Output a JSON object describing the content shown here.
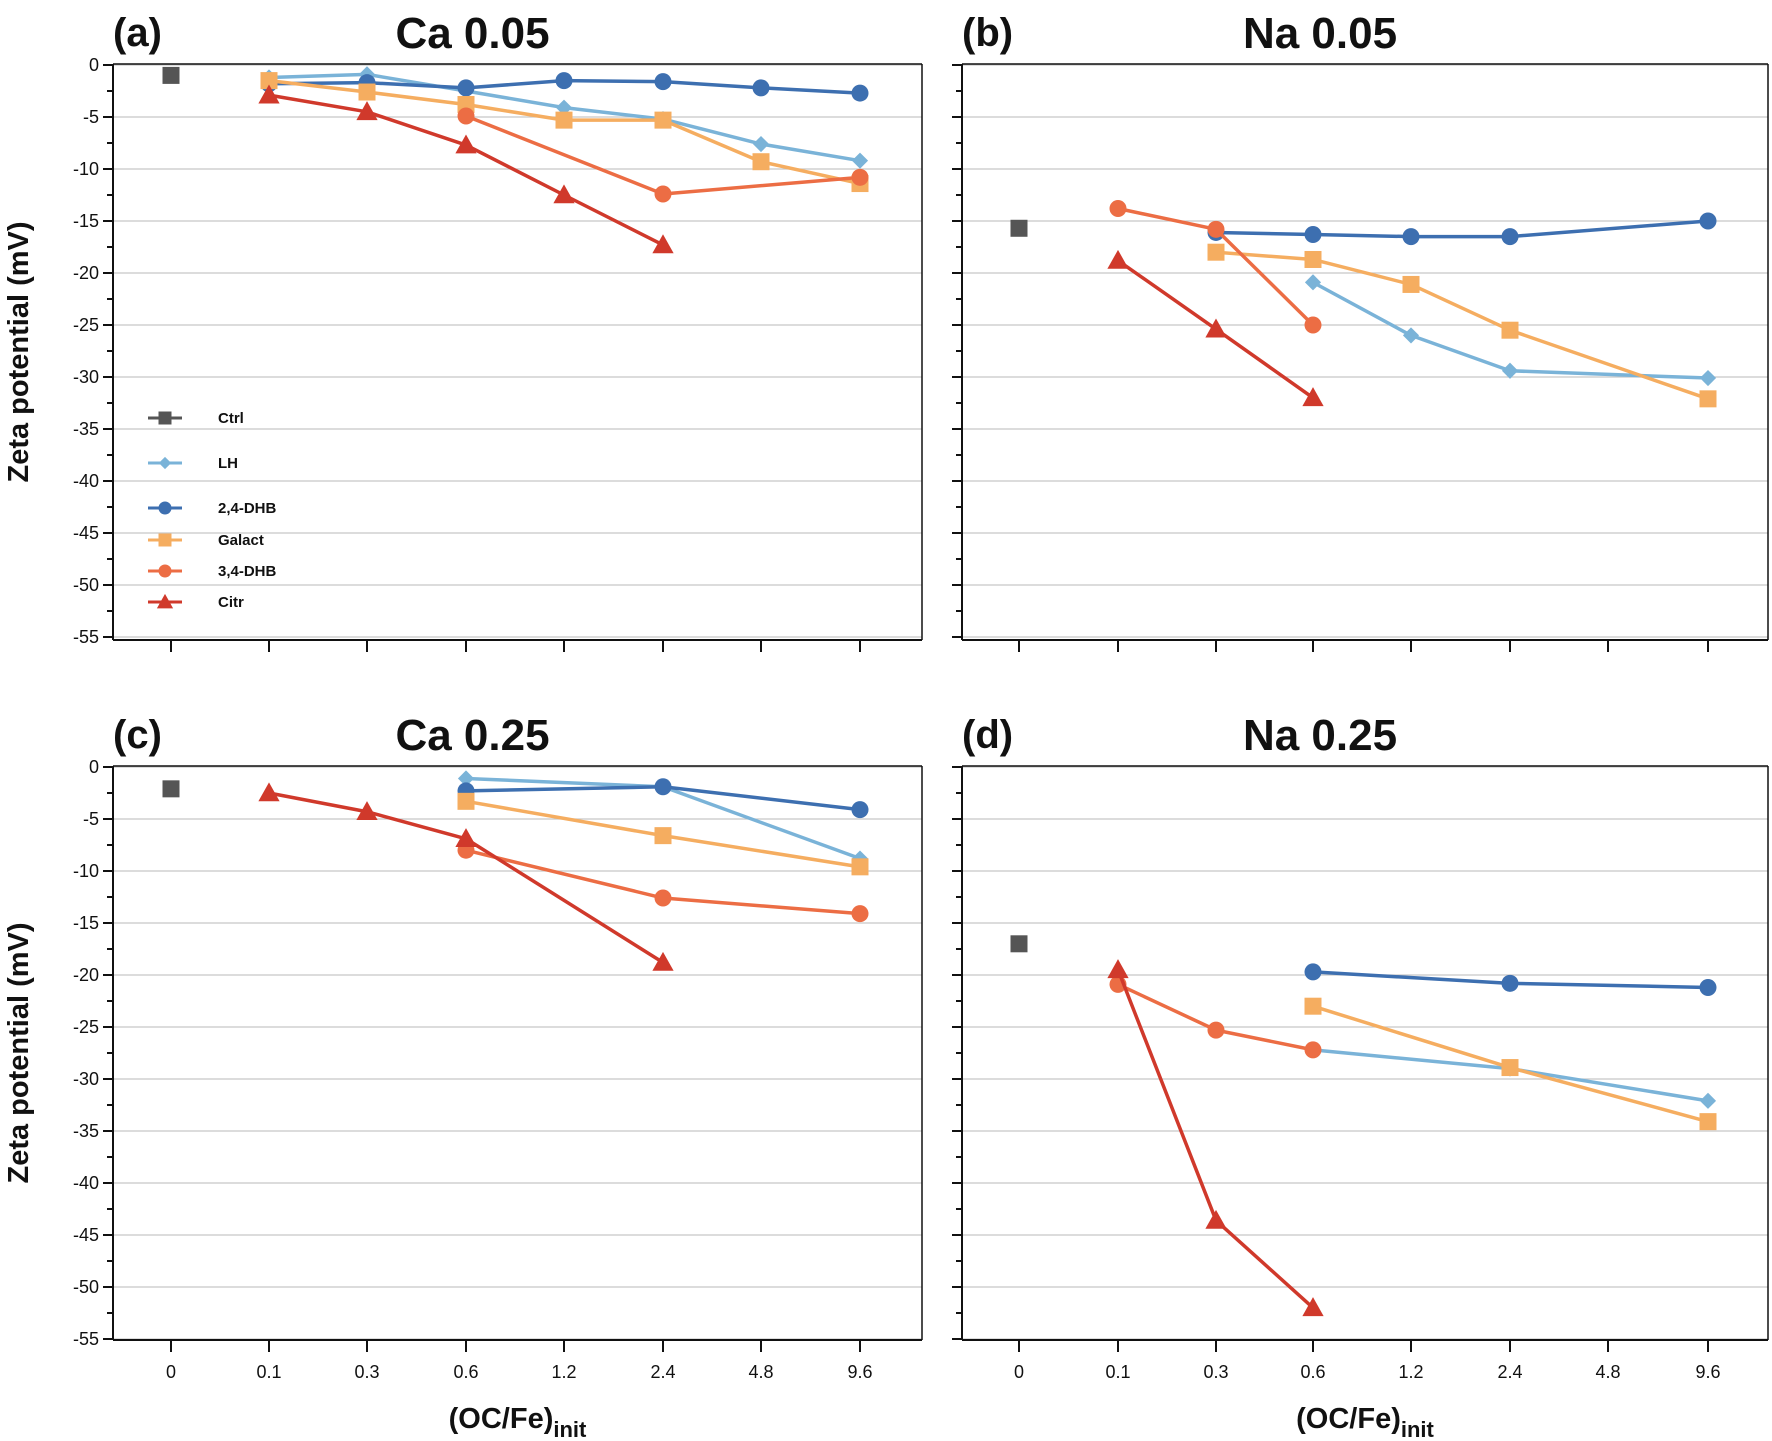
{
  "chart_data": [
    {
      "type": "line",
      "panel_letter": "(a)",
      "title": "Ca 0.05",
      "ylabel": "Zeta potential (mV)",
      "xlabel": "",
      "categories": [
        "0",
        "0.1",
        "0.3",
        "0.6",
        "1.2",
        "2.4",
        "4.8",
        "9.6"
      ],
      "ylim": [
        -55,
        0
      ],
      "yticks": [
        "0",
        "-5",
        "-10",
        "-15",
        "-20",
        "-25",
        "-30",
        "-35",
        "-40",
        "-45",
        "-50",
        "-55"
      ],
      "grid": true,
      "legend_position": "left",
      "series": [
        {
          "name": "Ctrl",
          "marker": "square",
          "color": "#555555",
          "values": [
            -1.0,
            null,
            null,
            null,
            null,
            null,
            null,
            null
          ]
        },
        {
          "name": "LH",
          "marker": "diamond",
          "color": "#7ab3d8",
          "values": [
            null,
            -1.2,
            -0.9,
            -2.5,
            -4.1,
            -5.2,
            -7.6,
            -9.2
          ]
        },
        {
          "name": "2,4-DHB",
          "marker": "circle",
          "color": "#3d6fb0",
          "values": [
            null,
            -1.8,
            -1.7,
            -2.2,
            -1.5,
            -1.6,
            -2.2,
            -2.7
          ]
        },
        {
          "name": "Galact",
          "marker": "square",
          "color": "#f5ad60",
          "values": [
            null,
            -1.5,
            -2.6,
            -3.8,
            -5.3,
            -5.3,
            -9.3,
            -11.4
          ]
        },
        {
          "name": "3,4-DHB",
          "marker": "circle",
          "color": "#ec6d44",
          "values": [
            null,
            null,
            null,
            -4.9,
            null,
            -12.4,
            null,
            -10.8
          ]
        },
        {
          "name": "Citr",
          "marker": "triangle",
          "color": "#d0392b",
          "values": [
            null,
            -2.9,
            -4.5,
            -7.7,
            -12.5,
            -17.3,
            null,
            null
          ]
        }
      ]
    },
    {
      "type": "line",
      "panel_letter": "(b)",
      "title": "Na 0.05",
      "ylabel": "",
      "xlabel": "",
      "categories": [
        "0",
        "0.1",
        "0.3",
        "0.6",
        "1.2",
        "2.4",
        "4.8",
        "9.6"
      ],
      "ylim": [
        -55,
        0
      ],
      "grid": true,
      "series": [
        {
          "name": "Ctrl",
          "marker": "square",
          "color": "#555555",
          "values": [
            -15.7,
            null,
            null,
            null,
            null,
            null,
            null,
            null
          ]
        },
        {
          "name": "LH",
          "marker": "diamond",
          "color": "#7ab3d8",
          "values": [
            null,
            null,
            null,
            -20.9,
            -26.0,
            -29.4,
            null,
            -30.1
          ]
        },
        {
          "name": "2,4-DHB",
          "marker": "circle",
          "color": "#3d6fb0",
          "values": [
            null,
            null,
            -16.1,
            -16.3,
            -16.5,
            -16.5,
            null,
            -15.0
          ]
        },
        {
          "name": "Galact",
          "marker": "square",
          "color": "#f5ad60",
          "values": [
            null,
            null,
            -18.0,
            -18.7,
            -21.1,
            -25.5,
            null,
            -32.1
          ]
        },
        {
          "name": "3,4-DHB",
          "marker": "circle",
          "color": "#ec6d44",
          "values": [
            null,
            -13.8,
            -15.8,
            -25.0,
            null,
            null,
            null,
            null
          ]
        },
        {
          "name": "Citr",
          "marker": "triangle",
          "color": "#d0392b",
          "values": [
            null,
            -18.8,
            -25.4,
            -32.0,
            null,
            null,
            null,
            null
          ]
        }
      ]
    },
    {
      "type": "line",
      "panel_letter": "(c)",
      "title": "Ca 0.25",
      "ylabel": "Zeta potential (mV)",
      "xlabel": "(OC/Fe)",
      "xlabel_sub": "init",
      "categories": [
        "0",
        "0.1",
        "0.3",
        "0.6",
        "1.2",
        "2.4",
        "4.8",
        "9.6"
      ],
      "ylim": [
        -55,
        0
      ],
      "yticks": [
        "0",
        "-5",
        "-10",
        "-15",
        "-20",
        "-25",
        "-30",
        "-35",
        "-40",
        "-45",
        "-50",
        "-55"
      ],
      "grid": true,
      "series": [
        {
          "name": "Ctrl",
          "marker": "square",
          "color": "#555555",
          "values": [
            -2.1,
            null,
            null,
            null,
            null,
            null,
            null,
            null
          ]
        },
        {
          "name": "LH",
          "marker": "diamond",
          "color": "#7ab3d8",
          "values": [
            null,
            null,
            null,
            -1.1,
            null,
            -1.9,
            null,
            -8.8
          ]
        },
        {
          "name": "2,4-DHB",
          "marker": "circle",
          "color": "#3d6fb0",
          "values": [
            null,
            null,
            null,
            -2.3,
            null,
            -1.9,
            null,
            -4.1
          ]
        },
        {
          "name": "Galact",
          "marker": "square",
          "color": "#f5ad60",
          "values": [
            null,
            null,
            null,
            -3.3,
            null,
            -6.6,
            null,
            -9.6
          ]
        },
        {
          "name": "3,4-DHB",
          "marker": "circle",
          "color": "#ec6d44",
          "values": [
            null,
            null,
            null,
            -8.0,
            null,
            -12.6,
            null,
            -14.1
          ]
        },
        {
          "name": "Citr",
          "marker": "triangle",
          "color": "#d0392b",
          "values": [
            null,
            -2.5,
            -4.3,
            -6.9,
            null,
            -18.8,
            null,
            null
          ]
        }
      ]
    },
    {
      "type": "line",
      "panel_letter": "(d)",
      "title": "Na 0.25",
      "ylabel": "",
      "xlabel": "(OC/Fe)",
      "xlabel_sub": "init",
      "categories": [
        "0",
        "0.1",
        "0.3",
        "0.6",
        "1.2",
        "2.4",
        "4.8",
        "9.6"
      ],
      "ylim": [
        -55,
        0
      ],
      "grid": true,
      "series": [
        {
          "name": "Ctrl",
          "marker": "square",
          "color": "#555555",
          "values": [
            -17.0,
            null,
            null,
            null,
            null,
            null,
            null,
            null
          ]
        },
        {
          "name": "LH",
          "marker": "diamond",
          "color": "#7ab3d8",
          "values": [
            null,
            null,
            null,
            -27.2,
            null,
            -29.0,
            null,
            -32.1
          ]
        },
        {
          "name": "2,4-DHB",
          "marker": "circle",
          "color": "#3d6fb0",
          "values": [
            null,
            null,
            null,
            -19.7,
            null,
            -20.8,
            null,
            -21.2
          ]
        },
        {
          "name": "Galact",
          "marker": "square",
          "color": "#f5ad60",
          "values": [
            null,
            null,
            null,
            -23.0,
            null,
            -28.9,
            null,
            -34.1
          ]
        },
        {
          "name": "3,4-DHB",
          "marker": "circle",
          "color": "#ec6d44",
          "values": [
            null,
            -20.9,
            -25.3,
            -27.2,
            null,
            null,
            null,
            null
          ]
        },
        {
          "name": "Citr",
          "marker": "triangle",
          "color": "#d0392b",
          "values": [
            null,
            -19.5,
            -43.6,
            -52.0,
            null,
            null,
            null,
            null
          ]
        }
      ]
    }
  ],
  "legend": [
    {
      "name": "Ctrl",
      "marker": "square",
      "color": "#555555"
    },
    {
      "name": "LH",
      "marker": "diamond",
      "color": "#7ab3d8"
    },
    {
      "name": "2,4-DHB",
      "marker": "circle",
      "color": "#3d6fb0"
    },
    {
      "name": "Galact",
      "marker": "square",
      "color": "#f5ad60"
    },
    {
      "name": "3,4-DHB",
      "marker": "circle",
      "color": "#ec6d44"
    },
    {
      "name": "Citr",
      "marker": "triangle",
      "color": "#d0392b"
    }
  ]
}
